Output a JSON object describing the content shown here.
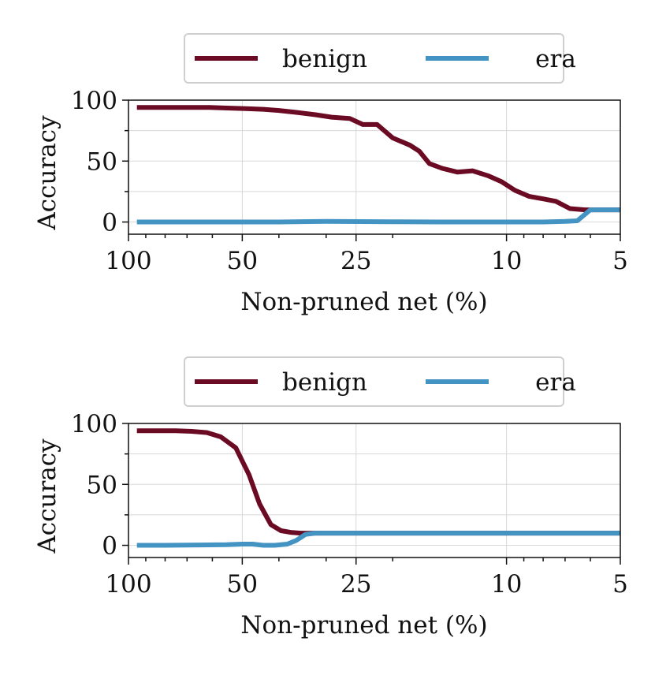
{
  "colors": {
    "benign": "#6b0a23",
    "era": "#4393c3"
  },
  "chart_data": [
    {
      "type": "line",
      "xlabel": "Non-pruned net (%)",
      "ylabel": "Accuracy",
      "xscale": "log-reversed",
      "xlim": [
        100,
        5
      ],
      "ylim": [
        -10,
        100
      ],
      "xticks": [
        100,
        50,
        25,
        10,
        5
      ],
      "xtick_labels": [
        "100",
        "50",
        "25",
        "10",
        "5"
      ],
      "yticks": [
        0,
        50,
        100
      ],
      "ytick_labels": [
        "0",
        "50",
        "100"
      ],
      "grid": true,
      "legend": {
        "placement": "top-center",
        "entries": [
          "benign",
          "era"
        ]
      },
      "series": [
        {
          "name": "benign",
          "x": [
            95,
            85,
            76,
            68,
            61,
            55,
            49,
            44,
            40,
            36,
            32,
            29,
            26,
            24,
            22,
            20,
            18,
            17,
            16,
            14.8,
            13.5,
            12.3,
            11.2,
            10.3,
            9.5,
            8.7,
            8.0,
            7.4,
            6.8,
            6.2,
            5.6,
            5
          ],
          "y": [
            94,
            94,
            94,
            94,
            94,
            93.5,
            93,
            92.5,
            91.5,
            90,
            88,
            86,
            85,
            80,
            80,
            69,
            63,
            58,
            48,
            44,
            41,
            42,
            38,
            33,
            26,
            21,
            19,
            17,
            11,
            10,
            10,
            10
          ]
        },
        {
          "name": "era",
          "x": [
            95,
            80,
            65,
            50,
            40,
            30,
            20,
            15,
            10,
            8,
            7,
            6.5,
            6,
            5.5,
            5
          ],
          "y": [
            0,
            0,
            0,
            0,
            0,
            0.5,
            0.2,
            0,
            0,
            0,
            0.5,
            1,
            10,
            10,
            10
          ]
        }
      ]
    },
    {
      "type": "line",
      "xlabel": "Non-pruned net (%)",
      "ylabel": "Accuracy",
      "xscale": "log-reversed",
      "xlim": [
        100,
        5
      ],
      "ylim": [
        -10,
        100
      ],
      "xticks": [
        100,
        50,
        25,
        10,
        5
      ],
      "xtick_labels": [
        "100",
        "50",
        "25",
        "10",
        "5"
      ],
      "yticks": [
        0,
        50,
        100
      ],
      "ytick_labels": [
        "0",
        "50",
        "100"
      ],
      "grid": true,
      "legend": {
        "placement": "top-center",
        "entries": [
          "benign",
          "era"
        ]
      },
      "series": [
        {
          "name": "benign",
          "x": [
            95,
            85,
            75,
            68,
            62,
            57,
            52,
            48,
            45,
            42,
            39.5,
            37,
            35,
            33,
            31,
            29,
            25,
            15,
            5
          ],
          "y": [
            94,
            94,
            94,
            93.5,
            92.5,
            89,
            80,
            58,
            34,
            17,
            12,
            10.5,
            10,
            10,
            10,
            10,
            10,
            10,
            10
          ]
        },
        {
          "name": "era",
          "x": [
            95,
            80,
            65,
            55,
            50,
            47,
            44,
            41,
            38,
            36,
            34,
            32,
            30,
            25,
            15,
            5
          ],
          "y": [
            0,
            0,
            0.3,
            0.5,
            1,
            1,
            0,
            0,
            1,
            4,
            9,
            10,
            10,
            10,
            10,
            10
          ]
        }
      ]
    }
  ]
}
